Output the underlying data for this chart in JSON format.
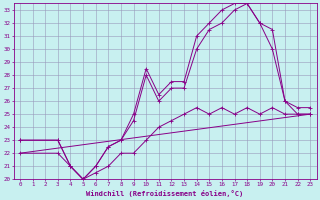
{
  "xlabel": "Windchill (Refroidissement éolien,°C)",
  "bg_color": "#c8f0f0",
  "grid_color": "#9999bb",
  "line_color": "#880088",
  "xlim": [
    -0.5,
    23.5
  ],
  "ylim": [
    20,
    33.5
  ],
  "xticks": [
    0,
    1,
    2,
    3,
    4,
    5,
    6,
    7,
    8,
    9,
    10,
    11,
    12,
    13,
    14,
    15,
    16,
    17,
    18,
    19,
    20,
    21,
    22,
    23
  ],
  "yticks": [
    20,
    21,
    22,
    23,
    24,
    25,
    26,
    27,
    28,
    29,
    30,
    31,
    32,
    33
  ],
  "line1_x": [
    0,
    23
  ],
  "line1_y": [
    22,
    25
  ],
  "line2_x": [
    0,
    3,
    4,
    5,
    6,
    7,
    8,
    9,
    10,
    11,
    12,
    13,
    14,
    15,
    16,
    17,
    18,
    19,
    20,
    21,
    22,
    23
  ],
  "line2_y": [
    22,
    22,
    21,
    20,
    20.5,
    21,
    22,
    22,
    23,
    24,
    24.5,
    25,
    25.5,
    25,
    25.5,
    25,
    25.5,
    25,
    25.5,
    25,
    25,
    25
  ],
  "line3_x": [
    0,
    3,
    4,
    5,
    6,
    7,
    8,
    9,
    10,
    11,
    12,
    13,
    14,
    15,
    16,
    17,
    18,
    19,
    20,
    21,
    22,
    23
  ],
  "line3_y": [
    23,
    23,
    21,
    20,
    21,
    22.5,
    23,
    24.5,
    28,
    26,
    27,
    27,
    30,
    31.5,
    32,
    33,
    33.5,
    32,
    30,
    26,
    25,
    25
  ],
  "line4_x": [
    0,
    3,
    4,
    5,
    6,
    7,
    8,
    9,
    10,
    11,
    12,
    13,
    14,
    15,
    16,
    17,
    18,
    19,
    20,
    21,
    22,
    23
  ],
  "line4_y": [
    23,
    23,
    21,
    20,
    21,
    22.5,
    23,
    25,
    28.5,
    26.5,
    27.5,
    27.5,
    31,
    32,
    33,
    33.5,
    33.5,
    32,
    31.5,
    26,
    25.5,
    25.5
  ]
}
